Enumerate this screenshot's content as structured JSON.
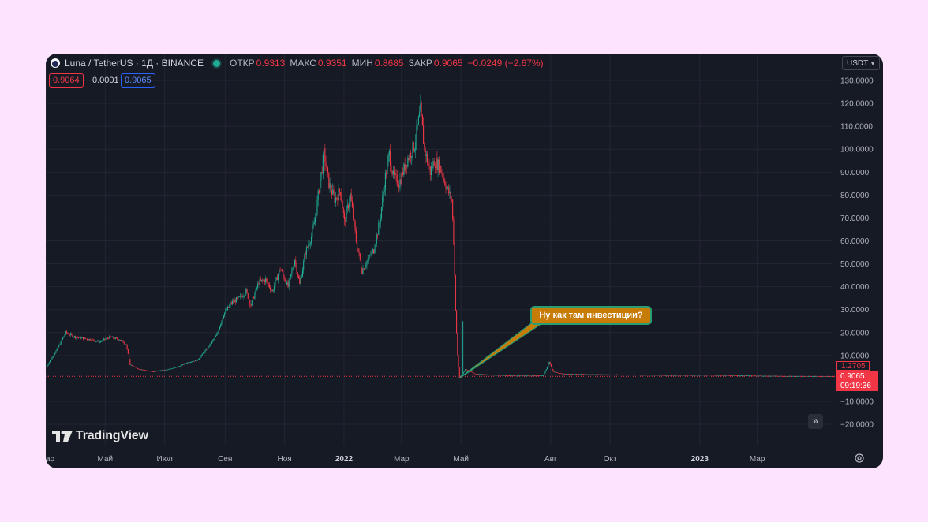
{
  "header": {
    "symbol": "Luna / TetherUS · 1Д · BINANCE",
    "open_label": "ОТКР",
    "open_value": "0.9313",
    "high_label": "МАКС",
    "high_value": "0.9351",
    "low_label": "МИН",
    "low_value": "0.8685",
    "close_label": "ЗАКР",
    "close_value": "0.9065",
    "change": "−0.0249 (−2.67%)"
  },
  "quotes": {
    "bid": "0.9064",
    "spread": "0.0001",
    "ask": "0.9065"
  },
  "currency": "USDT",
  "annotation": "Ну как там инвестиции?",
  "brand": "TradingView",
  "price_tags": {
    "high": "1.2705",
    "last": "0.9065",
    "countdown": "09:19:36"
  },
  "icons": {
    "logo": "luna-coin-icon",
    "status": "market-open-dot-icon",
    "scroll": "scroll-to-realtime-icon",
    "settings": "gear-icon"
  },
  "colors": {
    "background": "#161a25",
    "up": "#22ab94",
    "down": "#f23645",
    "page": "#fde3fd",
    "annotation": "#c77c08"
  },
  "chart_data": {
    "type": "candlestick",
    "y_ticks": [
      "130.0000",
      "120.0000",
      "110.0000",
      "100.0000",
      "90.0000",
      "80.0000",
      "70.0000",
      "60.0000",
      "50.0000",
      "40.0000",
      "30.0000",
      "20.0000",
      "10.0000",
      "−10.0000",
      "−20.0000"
    ],
    "ylim": [
      -28,
      135
    ],
    "x_ticks": [
      {
        "label": "ар",
        "t": 0
      },
      {
        "label": "Май",
        "t": 61
      },
      {
        "label": "Июл",
        "t": 122
      },
      {
        "label": "Сен",
        "t": 184
      },
      {
        "label": "Ноя",
        "t": 245
      },
      {
        "label": "2022",
        "t": 306,
        "bold": true
      },
      {
        "label": "Мар",
        "t": 365
      },
      {
        "label": "Май",
        "t": 426
      },
      {
        "label": "Авг",
        "t": 518
      },
      {
        "label": "Окт",
        "t": 579
      },
      {
        "label": "2023",
        "t": 671,
        "bold": true
      },
      {
        "label": "Мар",
        "t": 730
      }
    ],
    "xlim": [
      0,
      808
    ],
    "price_series": [
      [
        0,
        5
      ],
      [
        10,
        12
      ],
      [
        20,
        20
      ],
      [
        30,
        18
      ],
      [
        45,
        17
      ],
      [
        55,
        16
      ],
      [
        65,
        18
      ],
      [
        75,
        17
      ],
      [
        82,
        15
      ],
      [
        86,
        6
      ],
      [
        95,
        4
      ],
      [
        110,
        3
      ],
      [
        125,
        4
      ],
      [
        135,
        5
      ],
      [
        145,
        7
      ],
      [
        155,
        8
      ],
      [
        165,
        13
      ],
      [
        175,
        19
      ],
      [
        182,
        28
      ],
      [
        190,
        33
      ],
      [
        198,
        35
      ],
      [
        205,
        38
      ],
      [
        210,
        32
      ],
      [
        218,
        42
      ],
      [
        225,
        43
      ],
      [
        232,
        38
      ],
      [
        240,
        48
      ],
      [
        248,
        40
      ],
      [
        255,
        52
      ],
      [
        260,
        41
      ],
      [
        266,
        55
      ],
      [
        272,
        62
      ],
      [
        276,
        70
      ],
      [
        280,
        83
      ],
      [
        285,
        98
      ],
      [
        290,
        85
      ],
      [
        296,
        78
      ],
      [
        302,
        82
      ],
      [
        306,
        68
      ],
      [
        312,
        80
      ],
      [
        318,
        60
      ],
      [
        324,
        47
      ],
      [
        330,
        52
      ],
      [
        336,
        56
      ],
      [
        342,
        68
      ],
      [
        348,
        88
      ],
      [
        352,
        98
      ],
      [
        356,
        88
      ],
      [
        362,
        85
      ],
      [
        370,
        95
      ],
      [
        378,
        102
      ],
      [
        384,
        117
      ],
      [
        388,
        100
      ],
      [
        394,
        90
      ],
      [
        398,
        95
      ],
      [
        404,
        92
      ],
      [
        412,
        82
      ],
      [
        416,
        78
      ],
      [
        418,
        60
      ],
      [
        420,
        30
      ],
      [
        422,
        10
      ],
      [
        424,
        0
      ],
      [
        430,
        4
      ],
      [
        440,
        2
      ],
      [
        460,
        1.5
      ],
      [
        480,
        1.2
      ],
      [
        500,
        1.2
      ],
      [
        510,
        1.3
      ],
      [
        516,
        7
      ],
      [
        520,
        3
      ],
      [
        530,
        2
      ],
      [
        560,
        1.8
      ],
      [
        600,
        1.6
      ],
      [
        640,
        1.4
      ],
      [
        680,
        1.5
      ],
      [
        720,
        1.2
      ],
      [
        760,
        1
      ],
      [
        790,
        0.95
      ],
      [
        808,
        0.9065
      ]
    ],
    "last_price": 0.9065,
    "high_line": 1.2705
  }
}
